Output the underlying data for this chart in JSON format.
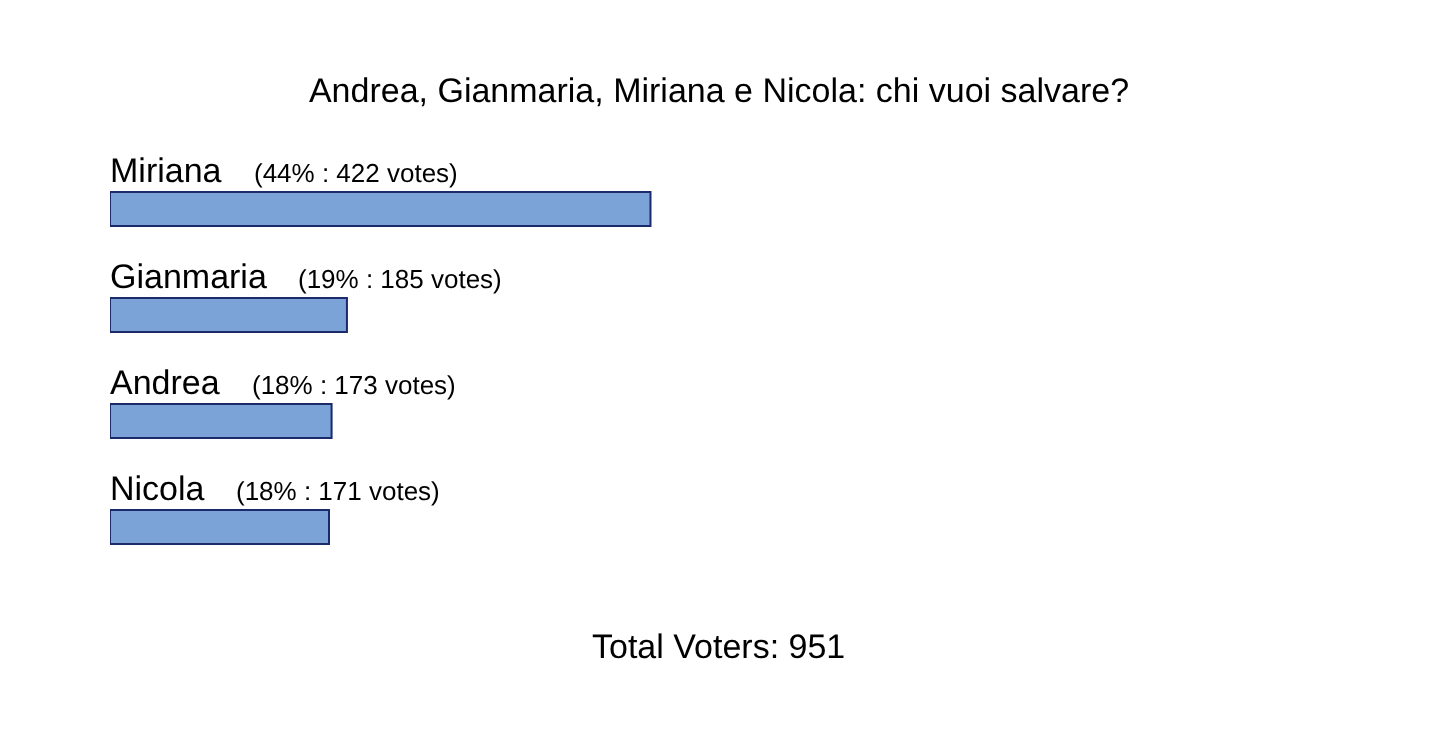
{
  "chart_data": {
    "type": "bar",
    "orientation": "horizontal",
    "title": "Andrea, Gianmaria, Miriana e Nicola: chi vuoi salvare?",
    "categories": [
      "Miriana",
      "Gianmaria",
      "Andrea",
      "Nicola"
    ],
    "values": [
      422,
      185,
      173,
      171
    ],
    "value_labels": [
      "(44% : 422 votes)",
      "(19% : 185 votes)",
      "(18% : 173 votes)",
      "(18% : 171 votes)"
    ],
    "color": "#7ba3d8",
    "annotations": [
      "Total Voters: 951"
    ]
  }
}
